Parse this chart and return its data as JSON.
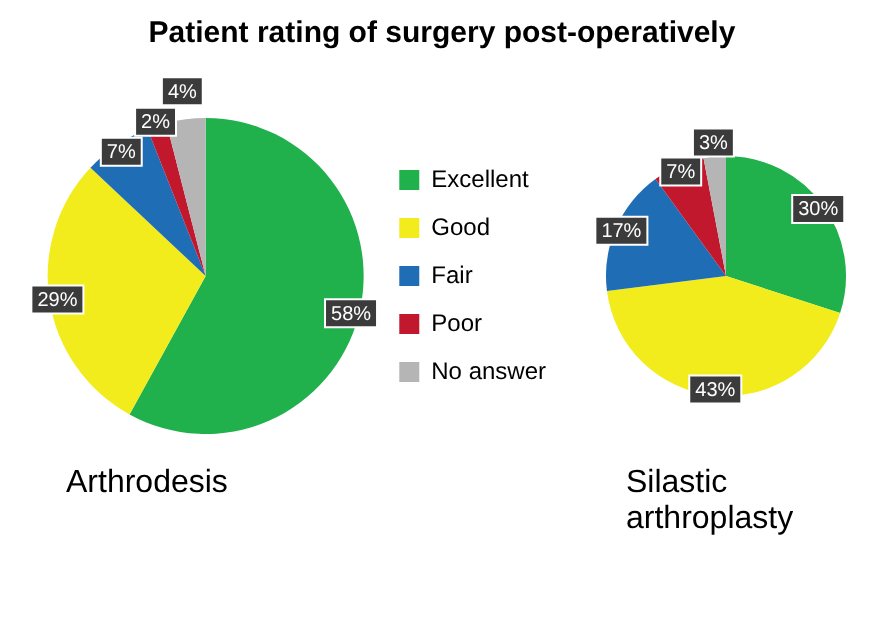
{
  "chart_data": [
    {
      "type": "pie",
      "title": "Patient rating of surgery post-operatively",
      "xlabel": "Arthrodesis",
      "categories": [
        "Excellent",
        "Good",
        "Fair",
        "Poor",
        "No answer"
      ],
      "values": [
        58,
        29,
        7,
        2,
        4
      ],
      "value_labels": [
        "58%",
        "29%",
        "7%",
        "2%",
        "4%"
      ],
      "colors": [
        "#20b04c",
        "#f3ec1c",
        "#1f6db5",
        "#c1182d",
        "#b5b5b5"
      ],
      "legend": "right"
    },
    {
      "type": "pie",
      "xlabel": "Silastic arthroplasty",
      "categories": [
        null,
        null,
        null,
        null,
        null
      ],
      "values": [
        30,
        43,
        17,
        7,
        3
      ],
      "value_labels": [
        "30%",
        "43%",
        "17%",
        "7%",
        "3%"
      ],
      "colors": [
        "#20b04c",
        "#f3ec1c",
        "#1f6db5",
        "#c1182d",
        "#b5b5b5"
      ]
    }
  ]
}
